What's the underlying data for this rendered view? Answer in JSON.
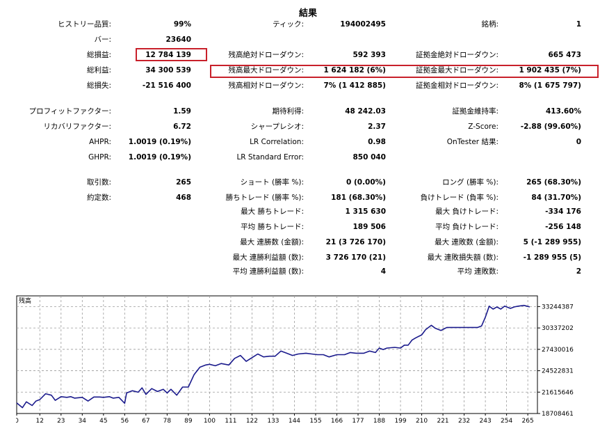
{
  "title": "結果",
  "col1": [
    {
      "label": "ヒストリー品質:",
      "value": "99%"
    },
    {
      "label": "バー:",
      "value": "23640"
    },
    {
      "label": "総損益:",
      "value": "12 784 139"
    },
    {
      "label": "総利益:",
      "value": "34 300 539"
    },
    {
      "label": "総損失:",
      "value": "-21 516 400"
    },
    {
      "label": "プロフィットファクター:",
      "value": "1.59"
    },
    {
      "label": "リカバリファクター:",
      "value": "6.72"
    },
    {
      "label": "AHPR:",
      "value": "1.0019 (0.19%)"
    },
    {
      "label": "GHPR:",
      "value": "1.0019 (0.19%)"
    },
    {
      "label": "取引数:",
      "value": "265"
    },
    {
      "label": "約定数:",
      "value": "468"
    }
  ],
  "col2": [
    {
      "label": "ティック:",
      "value": "194002495"
    },
    {
      "label": "残高絶対ドローダウン:",
      "value": "592 393"
    },
    {
      "label": "残高最大ドローダウン:",
      "value": "1 624 182 (6%)"
    },
    {
      "label": "残高相対ドローダウン:",
      "value": "7% (1 412 885)"
    },
    {
      "label": "期待利得:",
      "value": "48 242.03"
    },
    {
      "label": "シャープレシオ:",
      "value": "2.37"
    },
    {
      "label": "LR Correlation:",
      "value": "0.98"
    },
    {
      "label": "LR Standard Error:",
      "value": "850 040"
    },
    {
      "label": "ショート (勝率 %):",
      "value": "0 (0.00%)"
    },
    {
      "label": "勝ちトレード (勝率 %):",
      "value": "181 (68.30%)"
    },
    {
      "label": "最大 勝ちトレード:",
      "value": "1 315 630"
    },
    {
      "label": "平均 勝ちトレード:",
      "value": "189 506"
    },
    {
      "label": "最大 連勝数 (金額):",
      "value": "21 (3 726 170)"
    },
    {
      "label": "最大 連勝利益額 (数):",
      "value": "3 726 170 (21)"
    },
    {
      "label": "平均 連勝利益額 (数):",
      "value": "4"
    }
  ],
  "col3": [
    {
      "label": "銘柄:",
      "value": "1"
    },
    {
      "label": "証拠金絶対ドローダウン:",
      "value": "665 473"
    },
    {
      "label": "証拠金最大ドローダウン:",
      "value": "1 902 435 (7%)"
    },
    {
      "label": "証拠金相対ドローダウン:",
      "value": "8% (1 675 797)"
    },
    {
      "label": "証拠金維持率:",
      "value": "413.60%"
    },
    {
      "label": "Z-Score:",
      "value": "-2.88 (99.60%)"
    },
    {
      "label": "OnTester 結果:",
      "value": "0"
    },
    {
      "label": "ロング (勝率 %):",
      "value": "265 (68.30%)"
    },
    {
      "label": "負けトレード (負率 %):",
      "value": "84 (31.70%)"
    },
    {
      "label": "最大 負けトレード:",
      "value": "-334 176"
    },
    {
      "label": "平均 負けトレード:",
      "value": "-256 148"
    },
    {
      "label": "最大 連敗数 (金額):",
      "value": "5 (-1 289 955)"
    },
    {
      "label": "最大 連敗損失額 (数):",
      "value": "-1 289 955 (5)"
    },
    {
      "label": "平均 連敗数:",
      "value": "2"
    }
  ],
  "colors": {
    "highlight": "#c8202a",
    "line": "#1a1a8c",
    "grid": "#9a9a9a"
  },
  "chart_data": {
    "type": "line",
    "title": "残高",
    "xlabel": "",
    "ylabel": "",
    "x_ticks": [
      0,
      12,
      23,
      34,
      45,
      56,
      67,
      78,
      89,
      100,
      111,
      122,
      133,
      144,
      155,
      166,
      177,
      188,
      199,
      210,
      221,
      232,
      243,
      254,
      265
    ],
    "y_ticks": [
      18708461,
      21615646,
      24522831,
      27430016,
      30337202,
      33244387
    ],
    "xlim": [
      0,
      270
    ],
    "ylim": [
      18708461,
      34700000
    ],
    "grid": true,
    "series": [
      {
        "name": "",
        "x": [
          0,
          3,
          5,
          8,
          10,
          12,
          15,
          18,
          20,
          23,
          26,
          28,
          30,
          34,
          37,
          40,
          43,
          45,
          48,
          50,
          53,
          56,
          57,
          60,
          63,
          65,
          67,
          70,
          73,
          76,
          78,
          80,
          83,
          86,
          89,
          92,
          95,
          98,
          100,
          103,
          106,
          110,
          113,
          116,
          119,
          122,
          125,
          128,
          131,
          134,
          137,
          140,
          143,
          146,
          150,
          153,
          156,
          159,
          162,
          166,
          170,
          173,
          176,
          180,
          183,
          186,
          188,
          190,
          192,
          196,
          199,
          201,
          203,
          205,
          207,
          210,
          212,
          215,
          217,
          220,
          223,
          227,
          230,
          233,
          236,
          239,
          241,
          243,
          245,
          247,
          249,
          251,
          253,
          256,
          258,
          260,
          263,
          266
        ],
        "y": [
          20150000,
          19500000,
          20300000,
          19800000,
          20400000,
          20600000,
          21400000,
          21200000,
          20500000,
          21000000,
          20900000,
          21000000,
          20800000,
          20900000,
          20400000,
          20950000,
          20950000,
          20900000,
          21000000,
          20800000,
          20900000,
          20100000,
          21500000,
          21800000,
          21600000,
          22200000,
          21300000,
          22100000,
          21700000,
          22000000,
          21500000,
          22000000,
          21200000,
          22300000,
          22300000,
          24000000,
          25000000,
          25300000,
          25400000,
          25200000,
          25500000,
          25300000,
          26200000,
          26600000,
          25800000,
          26300000,
          26800000,
          26400000,
          26500000,
          26500000,
          27200000,
          26900000,
          26600000,
          26800000,
          26900000,
          26800000,
          26700000,
          26700000,
          26400000,
          26700000,
          26700000,
          27000000,
          26900000,
          26900000,
          27200000,
          27000000,
          27600000,
          27400000,
          27600000,
          27700000,
          27600000,
          28000000,
          28000000,
          28700000,
          29000000,
          29400000,
          30100000,
          30700000,
          30300000,
          30000000,
          30400000,
          30400000,
          30400000,
          30400000,
          30400000,
          30400000,
          30600000,
          31800000,
          33300000,
          32900000,
          33200000,
          32900000,
          33300000,
          33000000,
          33200000,
          33300000,
          33400000,
          33200000
        ]
      }
    ]
  }
}
